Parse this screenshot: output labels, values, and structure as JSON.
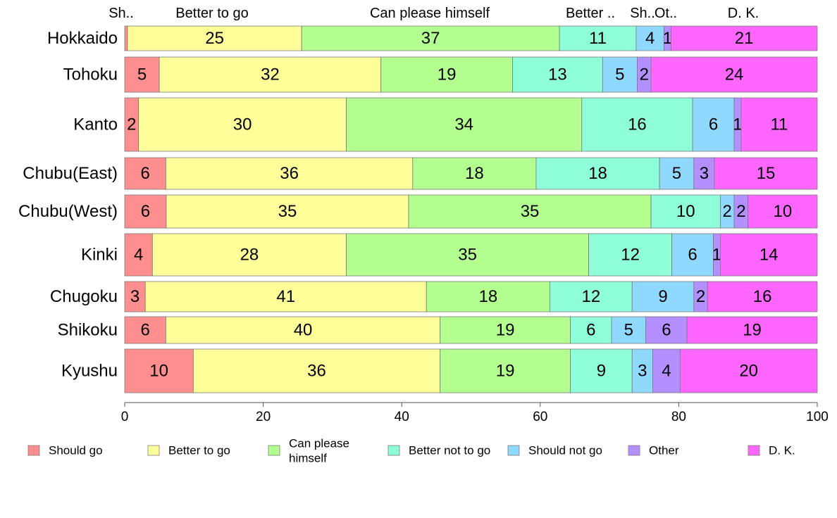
{
  "chart_data": {
    "type": "bar",
    "orientation": "horizontal",
    "stacked": true,
    "categories": [
      "Hokkaido",
      "Tohoku",
      "Kanto",
      "Chubu(East)",
      "Chubu(West)",
      "Kinki",
      "Chugoku",
      "Shikoku",
      "Kyushu"
    ],
    "series": [
      {
        "name": "Should go",
        "color": "#ff8f8f",
        "values": [
          0.4,
          5,
          2,
          6,
          6,
          4,
          3,
          6,
          10
        ],
        "labels": [
          "",
          "5",
          "2",
          "6",
          "6",
          "4",
          "3",
          "6",
          "10"
        ]
      },
      {
        "name": "Better to go",
        "color": "#ffff99",
        "values": [
          25,
          32,
          30,
          36,
          35,
          28,
          41,
          40,
          36
        ],
        "labels": [
          "25",
          "32",
          "30",
          "36",
          "35",
          "28",
          "41",
          "40",
          "36"
        ]
      },
      {
        "name": "Can please himself",
        "color": "#b3ff8f",
        "values": [
          37,
          19,
          34,
          18,
          35,
          35,
          18,
          19,
          19
        ],
        "labels": [
          "37",
          "19",
          "34",
          "18",
          "35",
          "35",
          "18",
          "19",
          "19"
        ]
      },
      {
        "name": "Better not to go",
        "color": "#8fffd9",
        "values": [
          11,
          13,
          16,
          18,
          10,
          12,
          12,
          6,
          9
        ],
        "labels": [
          "11",
          "13",
          "16",
          "18",
          "10",
          "12",
          "12",
          "6",
          "9"
        ]
      },
      {
        "name": "Should not go",
        "color": "#8fd9ff",
        "values": [
          4,
          5,
          6,
          5,
          2,
          6,
          9,
          5,
          3
        ],
        "labels": [
          "4",
          "5",
          "6",
          "5",
          "2",
          "6",
          "9",
          "5",
          "3"
        ]
      },
      {
        "name": "Other",
        "color": "#b38fff",
        "values": [
          1,
          2,
          1,
          3,
          2,
          1,
          2,
          6,
          4
        ],
        "labels": [
          "1",
          "2",
          "1",
          "3",
          "2",
          "1",
          "2",
          "6",
          "4"
        ]
      },
      {
        "name": "D. K.",
        "color": "#ff66ff",
        "values": [
          21,
          24,
          11,
          15,
          10,
          14,
          16,
          19,
          20
        ],
        "labels": [
          "21",
          "24",
          "11",
          "15",
          "10",
          "14",
          "16",
          "19",
          "20"
        ]
      }
    ],
    "column_labels": [
      "Sh..",
      "Better to go",
      "Can please himself",
      "Better ..",
      "Sh..",
      "Ot..",
      "D. K."
    ],
    "legend_labels": [
      [
        "Should go"
      ],
      [
        "Better to go"
      ],
      [
        "Can please",
        "himself"
      ],
      [
        "Better not to go"
      ],
      [
        "Should not go"
      ],
      [
        "Other"
      ],
      [
        "D. K."
      ]
    ],
    "xlim": [
      0,
      100
    ],
    "xticks": [
      "0",
      "20",
      "40",
      "60",
      "80",
      "100"
    ],
    "legend_position": "bottom",
    "grid": false
  }
}
